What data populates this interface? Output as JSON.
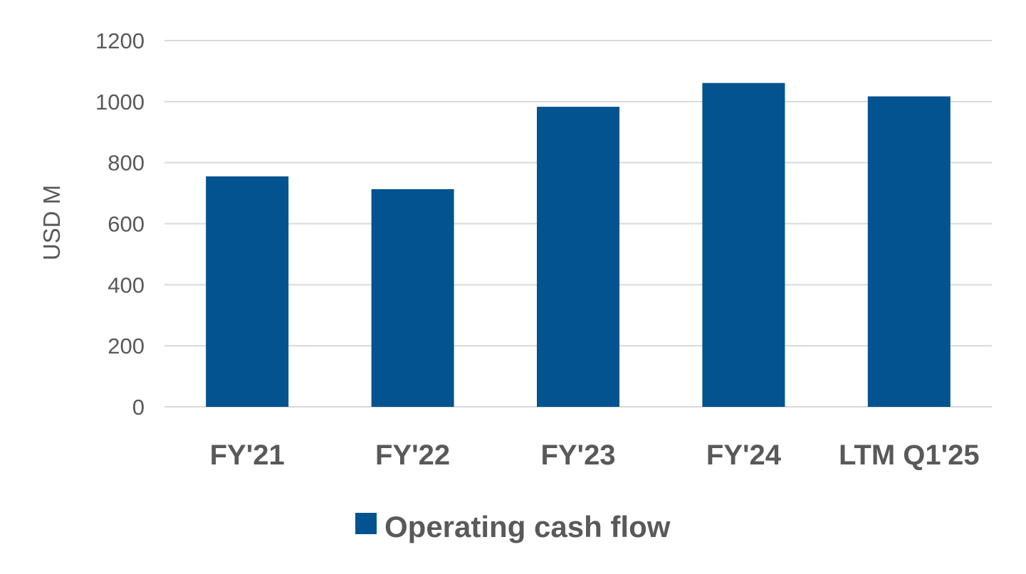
{
  "chart_data": {
    "type": "bar",
    "title": "",
    "xlabel": "",
    "ylabel": "USD M",
    "categories": [
      "FY'21",
      "FY'22",
      "FY'23",
      "FY'24",
      "LTM Q1'25"
    ],
    "series": [
      {
        "name": "Operating cash flow",
        "values": [
          755,
          713,
          983,
          1061,
          1017
        ]
      }
    ],
    "ylim": [
      0,
      1200
    ],
    "yticks": [
      0,
      200,
      400,
      600,
      800,
      1000,
      1200
    ],
    "grid": true,
    "legend_position": "bottom",
    "bar_color": "#02538F",
    "grid_color": "#D9D9D9",
    "text_color": "#595959"
  }
}
